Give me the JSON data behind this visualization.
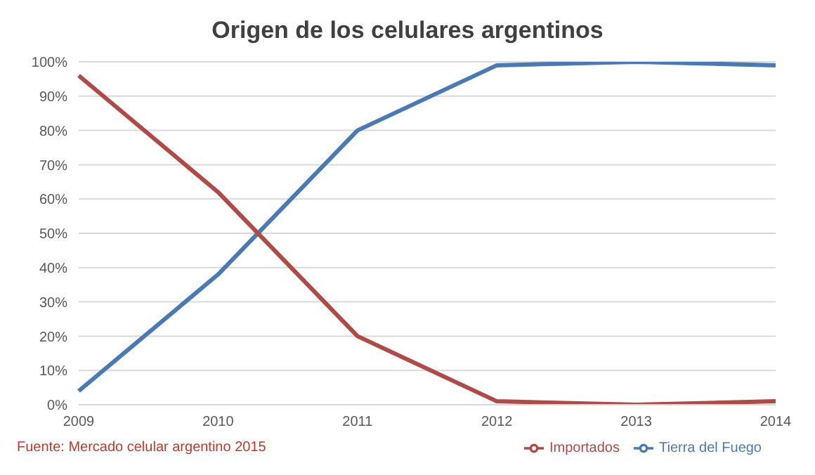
{
  "chart_data": {
    "type": "line",
    "title": "Origen de los celulares argentinos",
    "categories": [
      "2009",
      "2010",
      "2011",
      "2012",
      "2013",
      "2014"
    ],
    "series": [
      {
        "name": "Tierra del Fuego",
        "color": "#4a7ab5",
        "values": [
          4,
          38,
          80,
          99,
          100,
          99
        ]
      },
      {
        "name": "Importados",
        "color": "#b04a47",
        "values": [
          96,
          62,
          20,
          1,
          0,
          1
        ]
      }
    ],
    "ylim": [
      0,
      100
    ],
    "yticks": [
      {
        "value": 0,
        "label": "0%"
      },
      {
        "value": 10,
        "label": "10%"
      },
      {
        "value": 20,
        "label": "20%"
      },
      {
        "value": 30,
        "label": "30%"
      },
      {
        "value": 40,
        "label": "40%"
      },
      {
        "value": 50,
        "label": "50%"
      },
      {
        "value": 60,
        "label": "60%"
      },
      {
        "value": 70,
        "label": "70%"
      },
      {
        "value": 80,
        "label": "80%"
      },
      {
        "value": 90,
        "label": "90%"
      },
      {
        "value": 100,
        "label": "100%"
      }
    ],
    "grid": "y",
    "legend": "bottom right",
    "marker": "none",
    "line_style": "solid",
    "annotations": [
      "Fuente: Mercado celular argentino 2015"
    ]
  }
}
